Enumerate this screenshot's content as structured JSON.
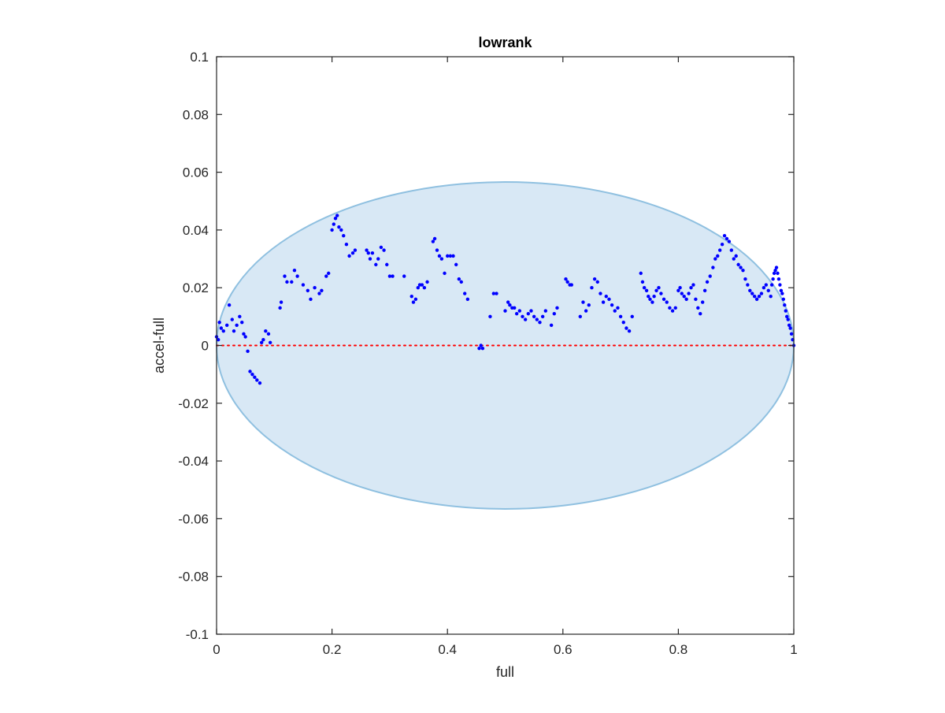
{
  "chart_data": {
    "type": "scatter",
    "title": "lowrank",
    "xlabel": "full",
    "ylabel": "accel-full",
    "xlim": [
      0,
      1
    ],
    "ylim": [
      -0.1,
      0.1
    ],
    "xticks": [
      0,
      0.2,
      0.4,
      0.6,
      0.8,
      1
    ],
    "xtick_labels": [
      "0",
      "0.2",
      "0.4",
      "0.6",
      "0.8",
      "1"
    ],
    "yticks": [
      0.1,
      0.08,
      0.06,
      0.04,
      0.02,
      0,
      -0.02,
      -0.04,
      -0.06,
      -0.08,
      -0.1
    ],
    "ytick_labels": [
      "0.1",
      "0.08",
      "0.06",
      "0.04",
      "0.02",
      "0",
      "-0.02",
      "-0.04",
      "-0.06",
      "-0.08",
      "-0.1"
    ],
    "grid": false,
    "reference_line": {
      "y": 0,
      "style": "dotted",
      "color": "#ff0000"
    },
    "ellipse": {
      "center": [
        0.5,
        0
      ],
      "radius_x": 0.5,
      "radius_y": 0.0566,
      "fill": "#d8e8f5",
      "stroke": "#8fc0e0"
    },
    "marker_color": "#0000ff",
    "series": [
      {
        "x": [
          0.0,
          0.003,
          0.005,
          0.008,
          0.012,
          0.018,
          0.022,
          0.027,
          0.03,
          0.035,
          0.04,
          0.044,
          0.047,
          0.05,
          0.054,
          0.058,
          0.062,
          0.066,
          0.07,
          0.075,
          0.078,
          0.081,
          0.085,
          0.09,
          0.093,
          0.11,
          0.112,
          0.118,
          0.122,
          0.13,
          0.135,
          0.14,
          0.15,
          0.158,
          0.163,
          0.17,
          0.178,
          0.182,
          0.19,
          0.194,
          0.2,
          0.203,
          0.206,
          0.209,
          0.212,
          0.216,
          0.22,
          0.225,
          0.23,
          0.236,
          0.24,
          0.26,
          0.263,
          0.266,
          0.27,
          0.276,
          0.28,
          0.285,
          0.29,
          0.295,
          0.3,
          0.305,
          0.325,
          0.338,
          0.341,
          0.345,
          0.349,
          0.352,
          0.356,
          0.36,
          0.365,
          0.375,
          0.378,
          0.382,
          0.386,
          0.39,
          0.395,
          0.4,
          0.405,
          0.41,
          0.415,
          0.42,
          0.424,
          0.43,
          0.435,
          0.455,
          0.458,
          0.461,
          0.474,
          0.48,
          0.485,
          0.5,
          0.505,
          0.508,
          0.512,
          0.516,
          0.52,
          0.525,
          0.53,
          0.535,
          0.54,
          0.545,
          0.55,
          0.555,
          0.56,
          0.565,
          0.57,
          0.58,
          0.585,
          0.59,
          0.605,
          0.608,
          0.612,
          0.615,
          0.63,
          0.635,
          0.64,
          0.645,
          0.65,
          0.655,
          0.66,
          0.665,
          0.67,
          0.675,
          0.68,
          0.685,
          0.69,
          0.695,
          0.7,
          0.705,
          0.71,
          0.715,
          0.72,
          0.735,
          0.738,
          0.741,
          0.745,
          0.748,
          0.751,
          0.755,
          0.758,
          0.762,
          0.766,
          0.77,
          0.775,
          0.78,
          0.785,
          0.79,
          0.795,
          0.8,
          0.803,
          0.806,
          0.81,
          0.814,
          0.818,
          0.822,
          0.826,
          0.83,
          0.834,
          0.838,
          0.842,
          0.846,
          0.85,
          0.855,
          0.86,
          0.864,
          0.868,
          0.872,
          0.876,
          0.88,
          0.884,
          0.888,
          0.892,
          0.896,
          0.9,
          0.904,
          0.908,
          0.912,
          0.916,
          0.92,
          0.924,
          0.928,
          0.932,
          0.936,
          0.94,
          0.944,
          0.948,
          0.952,
          0.956,
          0.96,
          0.962,
          0.964,
          0.966,
          0.968,
          0.97,
          0.972,
          0.974,
          0.976,
          0.978,
          0.98,
          0.982,
          0.984,
          0.986,
          0.988,
          0.99,
          0.992,
          0.994,
          0.996,
          0.998,
          1.0
        ],
        "y": [
          0.003,
          0.002,
          0.008,
          0.006,
          0.005,
          0.007,
          0.014,
          0.009,
          0.005,
          0.007,
          0.01,
          0.008,
          0.004,
          0.003,
          -0.002,
          -0.009,
          -0.01,
          -0.011,
          -0.012,
          -0.013,
          0.001,
          0.002,
          0.005,
          0.004,
          0.001,
          0.013,
          0.015,
          0.024,
          0.022,
          0.022,
          0.026,
          0.024,
          0.021,
          0.019,
          0.016,
          0.02,
          0.018,
          0.019,
          0.024,
          0.025,
          0.04,
          0.042,
          0.044,
          0.045,
          0.041,
          0.04,
          0.038,
          0.035,
          0.031,
          0.032,
          0.033,
          0.033,
          0.032,
          0.03,
          0.032,
          0.028,
          0.03,
          0.034,
          0.033,
          0.028,
          0.024,
          0.024,
          0.024,
          0.017,
          0.015,
          0.016,
          0.02,
          0.021,
          0.021,
          0.02,
          0.022,
          0.036,
          0.037,
          0.033,
          0.031,
          0.03,
          0.025,
          0.031,
          0.031,
          0.031,
          0.028,
          0.023,
          0.022,
          0.018,
          0.016,
          -0.001,
          0.0,
          -0.001,
          0.01,
          0.018,
          0.018,
          0.012,
          0.015,
          0.014,
          0.013,
          0.013,
          0.011,
          0.012,
          0.01,
          0.009,
          0.011,
          0.012,
          0.01,
          0.009,
          0.008,
          0.01,
          0.012,
          0.007,
          0.011,
          0.013,
          0.023,
          0.022,
          0.021,
          0.021,
          0.01,
          0.015,
          0.012,
          0.014,
          0.02,
          0.023,
          0.022,
          0.018,
          0.015,
          0.017,
          0.016,
          0.014,
          0.012,
          0.013,
          0.01,
          0.008,
          0.006,
          0.005,
          0.01,
          0.025,
          0.022,
          0.02,
          0.019,
          0.017,
          0.016,
          0.015,
          0.017,
          0.019,
          0.02,
          0.018,
          0.016,
          0.015,
          0.013,
          0.012,
          0.013,
          0.019,
          0.02,
          0.018,
          0.017,
          0.016,
          0.018,
          0.02,
          0.021,
          0.016,
          0.013,
          0.011,
          0.015,
          0.019,
          0.022,
          0.024,
          0.027,
          0.03,
          0.031,
          0.033,
          0.035,
          0.038,
          0.037,
          0.036,
          0.033,
          0.03,
          0.031,
          0.028,
          0.027,
          0.026,
          0.023,
          0.021,
          0.019,
          0.018,
          0.017,
          0.016,
          0.017,
          0.018,
          0.02,
          0.021,
          0.019,
          0.017,
          0.021,
          0.023,
          0.025,
          0.026,
          0.027,
          0.025,
          0.023,
          0.021,
          0.019,
          0.018,
          0.016,
          0.014,
          0.012,
          0.01,
          0.009,
          0.007,
          0.006,
          0.004,
          0.002,
          0.0
        ]
      }
    ]
  }
}
